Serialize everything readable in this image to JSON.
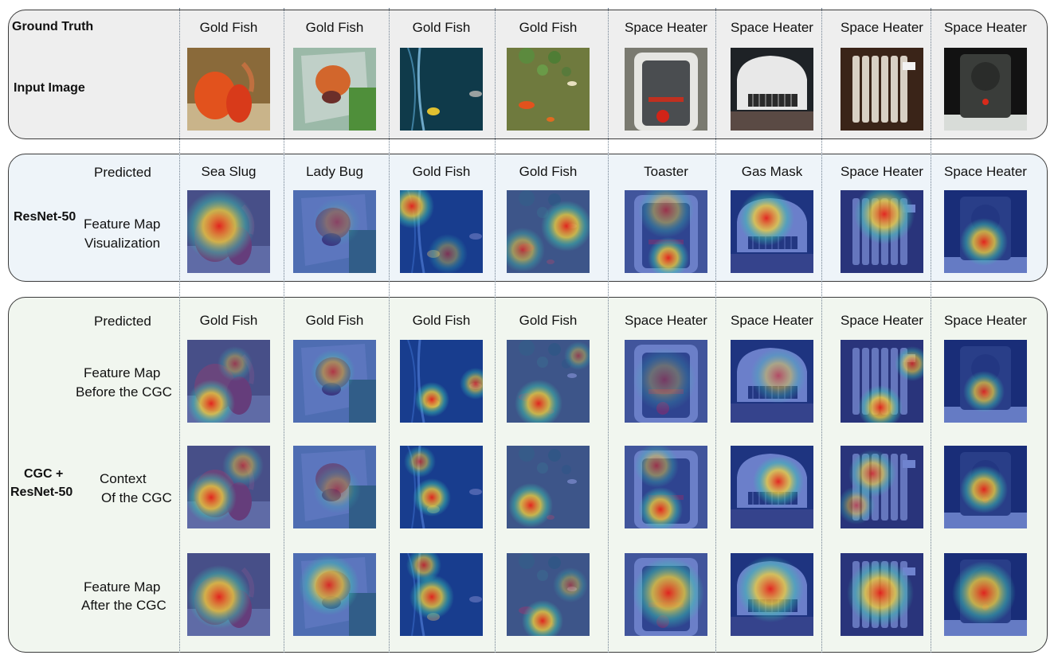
{
  "row_labels": {
    "ground_truth": "Ground Truth",
    "input_image": "Input Image",
    "resnet50": "ResNet-50",
    "predicted_1": "Predicted",
    "feature_map_vis_1": "Feature Map",
    "feature_map_vis_2": "Visualization",
    "cgc_1": "CGC +",
    "cgc_2": "ResNet-50",
    "predicted_2": "Predicted",
    "before_1": "Feature Map",
    "before_2": "Before the CGC",
    "context_1": "Context",
    "context_2": "Of the CGC",
    "after_1": "Feature Map",
    "after_2": "After the CGC"
  },
  "ground_truth": [
    "Gold Fish",
    "Gold Fish",
    "Gold Fish",
    "Gold Fish",
    "Space Heater",
    "Space Heater",
    "Space Heater",
    "Space Heater"
  ],
  "resnet_predicted": [
    "Sea Slug",
    "Lady Bug",
    "Gold Fish",
    "Gold Fish",
    "Toaster",
    "Gas Mask",
    "Space Heater",
    "Space Heater"
  ],
  "cgc_predicted": [
    "Gold Fish",
    "Gold Fish",
    "Gold Fish",
    "Gold Fish",
    "Space Heater",
    "Space Heater",
    "Space Heater",
    "Space Heater"
  ],
  "colors": {
    "fish_orange": "#e2521d",
    "heatmap_blue": "#1f3fb8",
    "heatmap_red": "#e8231a",
    "heatmap_yellow": "#f5d33a"
  }
}
